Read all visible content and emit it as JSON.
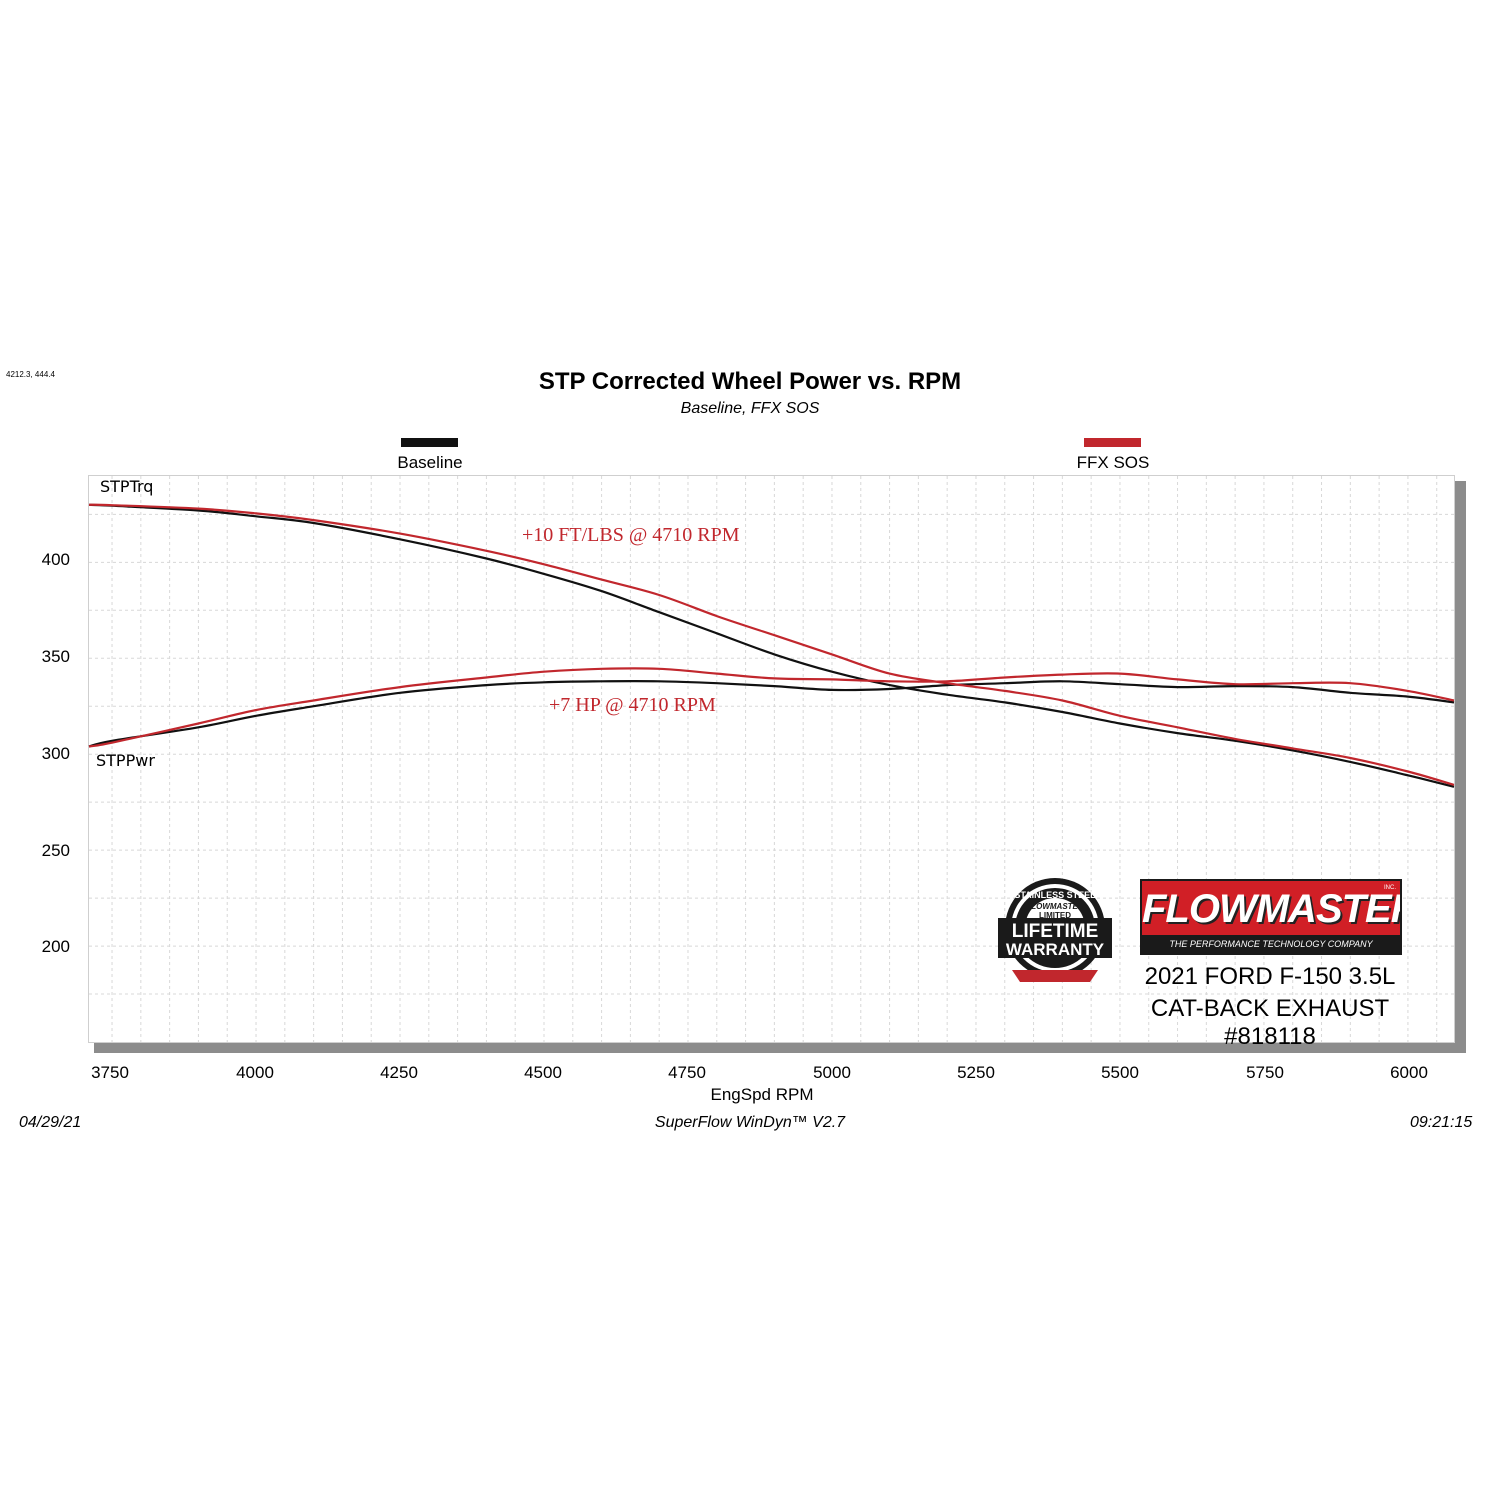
{
  "corner_readout": "4212.3, 444.4",
  "footer": {
    "date": "04/29/21",
    "software": "SuperFlow WinDyn™  V2.7",
    "time": "09:21:15"
  },
  "annotations": {
    "torque_gain": "+10 FT/LBS @ 4710 RPM",
    "power_gain": "+7 HP @ 4710 RPM"
  },
  "branding": {
    "logo_text": "FLOWMASTER",
    "logo_tagline": "THE PERFORMANCE TECHNOLOGY COMPANY",
    "logo_inc": "INC.",
    "warranty_badge": {
      "ring_text": "STAINLESS STEEL",
      "brand": "FLOWMASTER",
      "limited": "LIMITED",
      "line1": "LIFETIME",
      "line2": "WARRANTY"
    },
    "vehicle_line1": "2021 FORD F-150 3.5L",
    "vehicle_line2": "CAT-BACK EXHAUST #818118"
  },
  "colors": {
    "baseline": "#111111",
    "ffx": "#c1272d",
    "grid": "#d8d8d8"
  },
  "chart_data": {
    "type": "line",
    "title": "STP Corrected Wheel Power vs. RPM",
    "subtitle": "Baseline, FFX SOS",
    "xlabel": "EngSpd  RPM",
    "ylabel": "",
    "xlim": [
      3710,
      6080
    ],
    "ylim": [
      150,
      445
    ],
    "xticks": [
      3750,
      4000,
      4250,
      4500,
      4750,
      5000,
      5250,
      5500,
      5750,
      6000
    ],
    "yticks": [
      200,
      250,
      300,
      350,
      400
    ],
    "grid": true,
    "legend_position": "top",
    "curve_labels": {
      "torque": "STPTrq",
      "power": "STPPwr"
    },
    "x": [
      3710,
      3750,
      3900,
      4000,
      4100,
      4250,
      4400,
      4500,
      4600,
      4700,
      4800,
      4900,
      5000,
      5100,
      5200,
      5300,
      5400,
      5500,
      5600,
      5700,
      5800,
      5900,
      6000,
      6080
    ],
    "series": [
      {
        "name": "Baseline",
        "legend_label": "Baseline",
        "color": "#111111",
        "torque": [
          430,
          429.5,
          427,
          424,
          420.5,
          412,
          402,
          394,
          385,
          374,
          363,
          352,
          343,
          336,
          331,
          327,
          322,
          316,
          311,
          307,
          302,
          296,
          289,
          283
        ],
        "power": [
          304,
          307,
          314,
          320,
          325,
          332,
          336,
          337.5,
          338,
          338,
          337,
          335.5,
          333.5,
          334,
          336,
          337,
          338,
          336.5,
          335,
          335.5,
          335,
          332,
          330,
          327
        ]
      },
      {
        "name": "FFX SOS",
        "legend_label": "FFX SOS",
        "color": "#c1272d",
        "torque": [
          430,
          429.8,
          428,
          425.5,
          422,
          415,
          406,
          399,
          391,
          383,
          372,
          362,
          352,
          342,
          337,
          333,
          328,
          320,
          314,
          308,
          303,
          298,
          291,
          284
        ],
        "power": [
          304,
          306,
          316,
          323,
          328,
          335,
          340,
          343,
          344.5,
          344.5,
          342,
          339.5,
          339,
          338,
          338,
          340,
          341.5,
          342,
          339,
          336.5,
          337,
          337,
          333,
          328
        ]
      }
    ]
  }
}
